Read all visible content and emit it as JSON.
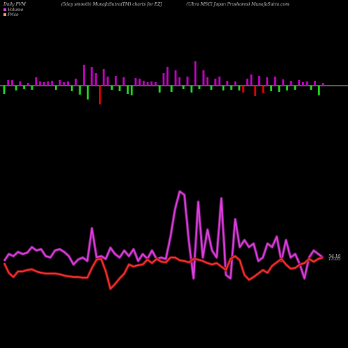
{
  "header": {
    "left": "Daily PVM",
    "center_left": "(5day smooth) MunafaSutra(TM) charts for EZJ",
    "center_right": "(Ultra MSCI Japan Proshares) MunafaSutra.com"
  },
  "legend": {
    "volume_label": "Volume",
    "price_label": "Price",
    "volume_color": "#e040e0",
    "price_color": "#ff9a6a"
  },
  "chart_data": {
    "type": "bar",
    "title": "",
    "volume_bars": {
      "up_color": "#cc00cc",
      "down_green": "#22dd22",
      "down_red": "#ee0000",
      "items": [
        {
          "dir": "down",
          "c": "g",
          "v": 12
        },
        {
          "dir": "up",
          "c": "m",
          "v": 8
        },
        {
          "dir": "up",
          "c": "m",
          "v": 8
        },
        {
          "dir": "down",
          "c": "g",
          "v": 7
        },
        {
          "dir": "up",
          "c": "m",
          "v": 6
        },
        {
          "dir": "down",
          "c": "g",
          "v": 5
        },
        {
          "dir": "up",
          "c": "m",
          "v": 4
        },
        {
          "dir": "down",
          "c": "g",
          "v": 6
        },
        {
          "dir": "up",
          "c": "m",
          "v": 12
        },
        {
          "dir": "up",
          "c": "m",
          "v": 6
        },
        {
          "dir": "up",
          "c": "m",
          "v": 5
        },
        {
          "dir": "up",
          "c": "m",
          "v": 6
        },
        {
          "dir": "up",
          "c": "m",
          "v": 7
        },
        {
          "dir": "down",
          "c": "g",
          "v": 6
        },
        {
          "dir": "up",
          "c": "m",
          "v": 8
        },
        {
          "dir": "up",
          "c": "m",
          "v": 5
        },
        {
          "dir": "up",
          "c": "m",
          "v": 6
        },
        {
          "dir": "down",
          "c": "g",
          "v": 8
        },
        {
          "dir": "up",
          "c": "m",
          "v": 10
        },
        {
          "dir": "down",
          "c": "g",
          "v": 13
        },
        {
          "dir": "up",
          "c": "m",
          "v": 30
        },
        {
          "dir": "down",
          "c": "g",
          "v": 20
        },
        {
          "dir": "up",
          "c": "m",
          "v": 27
        },
        {
          "dir": "up",
          "c": "m",
          "v": 18
        },
        {
          "dir": "down",
          "c": "r",
          "v": 27
        },
        {
          "dir": "up",
          "c": "m",
          "v": 24
        },
        {
          "dir": "up",
          "c": "m",
          "v": 13
        },
        {
          "dir": "down",
          "c": "g",
          "v": 6
        },
        {
          "dir": "up",
          "c": "m",
          "v": 14
        },
        {
          "dir": "down",
          "c": "g",
          "v": 8
        },
        {
          "dir": "up",
          "c": "m",
          "v": 12
        },
        {
          "dir": "down",
          "c": "g",
          "v": 12
        },
        {
          "dir": "down",
          "c": "g",
          "v": 14
        },
        {
          "dir": "up",
          "c": "m",
          "v": 11
        },
        {
          "dir": "up",
          "c": "m",
          "v": 10
        },
        {
          "dir": "up",
          "c": "m",
          "v": 7
        },
        {
          "dir": "up",
          "c": "m",
          "v": 5
        },
        {
          "dir": "up",
          "c": "m",
          "v": 6
        },
        {
          "dir": "up",
          "c": "m",
          "v": 5
        },
        {
          "dir": "down",
          "c": "g",
          "v": 10
        },
        {
          "dir": "up",
          "c": "m",
          "v": 18
        },
        {
          "dir": "up",
          "c": "m",
          "v": 27
        },
        {
          "dir": "down",
          "c": "g",
          "v": 9
        },
        {
          "dir": "up",
          "c": "m",
          "v": 22
        },
        {
          "dir": "up",
          "c": "m",
          "v": 12
        },
        {
          "dir": "down",
          "c": "g",
          "v": 5
        },
        {
          "dir": "up",
          "c": "m",
          "v": 13
        },
        {
          "dir": "down",
          "c": "g",
          "v": 10
        },
        {
          "dir": "up",
          "c": "m",
          "v": 35
        },
        {
          "dir": "down",
          "c": "g",
          "v": 5
        },
        {
          "dir": "up",
          "c": "m",
          "v": 22
        },
        {
          "dir": "up",
          "c": "m",
          "v": 12
        },
        {
          "dir": "down",
          "c": "g",
          "v": 6
        },
        {
          "dir": "up",
          "c": "m",
          "v": 10
        },
        {
          "dir": "up",
          "c": "m",
          "v": 13
        },
        {
          "dir": "down",
          "c": "g",
          "v": 7
        },
        {
          "dir": "up",
          "c": "m",
          "v": 7
        },
        {
          "dir": "down",
          "c": "g",
          "v": 6
        },
        {
          "dir": "up",
          "c": "m",
          "v": 6
        },
        {
          "dir": "down",
          "c": "g",
          "v": 7
        },
        {
          "dir": "down",
          "c": "r",
          "v": 10
        },
        {
          "dir": "up",
          "c": "m",
          "v": 10
        },
        {
          "dir": "up",
          "c": "m",
          "v": 16
        },
        {
          "dir": "down",
          "c": "r",
          "v": 15
        },
        {
          "dir": "up",
          "c": "m",
          "v": 14
        },
        {
          "dir": "down",
          "c": "r",
          "v": 11
        },
        {
          "dir": "up",
          "c": "m",
          "v": 12
        },
        {
          "dir": "down",
          "c": "g",
          "v": 8
        },
        {
          "dir": "up",
          "c": "m",
          "v": 13
        },
        {
          "dir": "down",
          "c": "g",
          "v": 9
        },
        {
          "dir": "up",
          "c": "m",
          "v": 9
        },
        {
          "dir": "down",
          "c": "g",
          "v": 7
        },
        {
          "dir": "up",
          "c": "m",
          "v": 7
        },
        {
          "dir": "down",
          "c": "g",
          "v": 6
        },
        {
          "dir": "up",
          "c": "m",
          "v": 8
        },
        {
          "dir": "up",
          "c": "m",
          "v": 5
        },
        {
          "dir": "up",
          "c": "m",
          "v": 6
        },
        {
          "dir": "down",
          "c": "g",
          "v": 6
        },
        {
          "dir": "up",
          "c": "m",
          "v": 7
        },
        {
          "dir": "down",
          "c": "g",
          "v": 14
        },
        {
          "dir": "up",
          "c": "m",
          "v": 4
        }
      ]
    },
    "series": [
      {
        "name": "Volume",
        "color": "#e040e0",
        "values": [
          375,
          365,
          368,
          362,
          365,
          363,
          355,
          360,
          358,
          368,
          370,
          360,
          358,
          362,
          368,
          380,
          373,
          370,
          375,
          328,
          370,
          368,
          372,
          356,
          365,
          370,
          360,
          368,
          358,
          375,
          365,
          372,
          360,
          372,
          370,
          372,
          340,
          300,
          275,
          280,
          348,
          400,
          290,
          370,
          330,
          360,
          370,
          285,
          395,
          400,
          315,
          355,
          345,
          355,
          350,
          375,
          370,
          350,
          355,
          340,
          375,
          345,
          370,
          365,
          380,
          400,
          370,
          360,
          365,
          370
        ]
      },
      {
        "name": "Price",
        "color": "#ff3030",
        "values": [
          378,
          392,
          398,
          390,
          390,
          388,
          387,
          390,
          392,
          393,
          393,
          393,
          394,
          396,
          397,
          398,
          398,
          399,
          399,
          385,
          373,
          372,
          390,
          415,
          408,
          400,
          393,
          380,
          383,
          381,
          380,
          373,
          378,
          372,
          376,
          377,
          370,
          370,
          374,
          375,
          377,
          372,
          373,
          375,
          378,
          380,
          378,
          383,
          388,
          372,
          368,
          374,
          395,
          402,
          398,
          393,
          388,
          392,
          382,
          377,
          372,
          380,
          386,
          385,
          380,
          378,
          372,
          376,
          372,
          370
        ]
      }
    ],
    "end_labels": [
      "13.05",
      "54.16"
    ]
  }
}
